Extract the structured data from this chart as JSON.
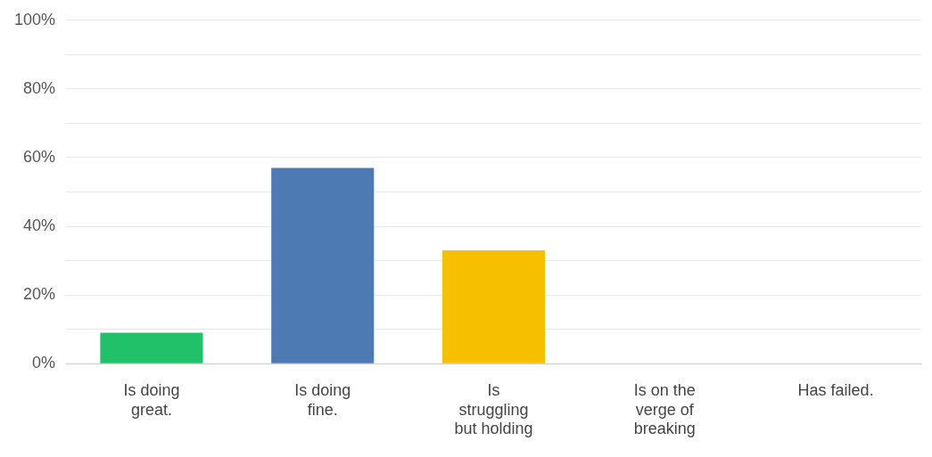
{
  "chart_data": {
    "type": "bar",
    "categories": [
      "Is doing great.",
      "Is doing fine.",
      "Is struggling but holding",
      "Is on the verge of breaking",
      "Has failed."
    ],
    "values": [
      9,
      57,
      33,
      0,
      0
    ],
    "colors": [
      "#21c169",
      "#4e7ab4",
      "#f6bf00",
      "#888888",
      "#888888"
    ],
    "ylim": [
      0,
      100
    ],
    "yticks": [
      {
        "value": 0,
        "label": "0%"
      },
      {
        "value": 10,
        "label": null
      },
      {
        "value": 20,
        "label": "20%"
      },
      {
        "value": 30,
        "label": null
      },
      {
        "value": 40,
        "label": "40%"
      },
      {
        "value": 50,
        "label": null
      },
      {
        "value": 60,
        "label": "60%"
      },
      {
        "value": 70,
        "label": null
      },
      {
        "value": 80,
        "label": "80%"
      },
      {
        "value": 90,
        "label": null
      },
      {
        "value": 100,
        "label": "100%"
      }
    ],
    "grid": "y"
  }
}
